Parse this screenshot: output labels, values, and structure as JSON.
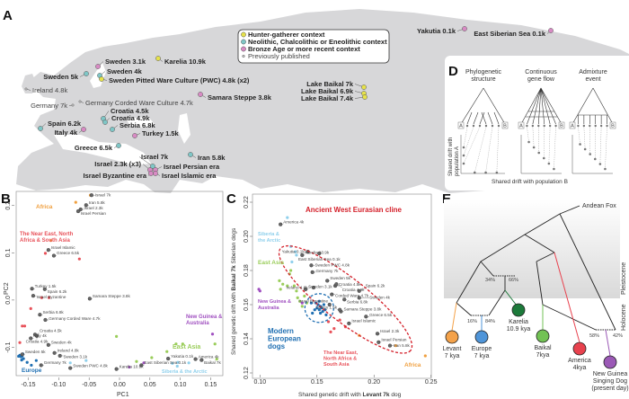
{
  "panels": {
    "a": "A",
    "b": "B",
    "c": "C",
    "d": "D",
    "e": "E"
  },
  "colors": {
    "hunter": "#e6e24a",
    "neolithic": "#7fc6c6",
    "bronze": "#d88bc4",
    "previous": "#cccccc",
    "land": "#d7d7d9",
    "europe": "#1f6fb2",
    "neareast": "#e8525a",
    "eastasia": "#9acd5a",
    "siberia": "#8fd0ec",
    "newguinea": "#a050c0",
    "africa": "#f0a040",
    "cline": "#d4202a"
  },
  "map": {
    "legend": [
      {
        "label": "Hunter-gatherer context",
        "type": "hunter"
      },
      {
        "label": "Neolithic, Chalcolithic or Eneolithic context",
        "type": "neolithic"
      },
      {
        "label": "Bronze Age or more recent context",
        "type": "bronze"
      },
      {
        "label": "Previously published",
        "type": "previous"
      }
    ],
    "sites": [
      {
        "label": "Sweden 3.1k",
        "type": "bronze"
      },
      {
        "label": "Karelia 10.9k",
        "type": "hunter"
      },
      {
        "label": "Sweden 5k",
        "type": "neolithic"
      },
      {
        "label": "Sweden 4k",
        "type": "neolithic"
      },
      {
        "label": "Sweden Pitted Ware Culture (PWC) 4.8k (x2)",
        "type": "hunter"
      },
      {
        "label": "Ireland 4.8k",
        "type": "previous"
      },
      {
        "label": "Germany 7k",
        "type": "previous"
      },
      {
        "label": "Germany Corded Ware Culture 4.7k",
        "type": "previous"
      },
      {
        "label": "Samara Steppe 3.8k",
        "type": "bronze"
      },
      {
        "label": "Croatia 4.5k",
        "type": "neolithic"
      },
      {
        "label": "Croatia 4.9k",
        "type": "neolithic"
      },
      {
        "label": "Serbia 6.8k",
        "type": "neolithic"
      },
      {
        "label": "Spain 6.2k",
        "type": "neolithic"
      },
      {
        "label": "Italy 4k",
        "type": "bronze"
      },
      {
        "label": "Turkey 1.5k",
        "type": "bronze"
      },
      {
        "label": "Greece 6.5k",
        "type": "neolithic"
      },
      {
        "label": "Iran 5.8k",
        "type": "neolithic"
      },
      {
        "label": "Israel 7k",
        "type": "neolithic"
      },
      {
        "label": "Israel 2.3k (x3)",
        "type": "bronze"
      },
      {
        "label": "Israel Persian era",
        "type": "bronze"
      },
      {
        "label": "Israel Byzantine era",
        "type": "bronze"
      },
      {
        "label": "Israel Islamic era",
        "type": "bronze"
      },
      {
        "label": "Lake Baikal 7k",
        "type": "hunter"
      },
      {
        "label": "Lake Baikal 6.9k",
        "type": "hunter"
      },
      {
        "label": "Lake Baikal 7.4k",
        "type": "hunter"
      },
      {
        "label": "Yakutia 0.1k",
        "type": "bronze"
      },
      {
        "label": "East Siberian Sea 0.1k",
        "type": "bronze"
      }
    ]
  },
  "chart_data": [
    {
      "type": "scatter",
      "panel": "B",
      "xlabel": "PC1",
      "ylabel": "PC2",
      "xlim": [
        -0.17,
        0.17
      ],
      "ylim": [
        -0.16,
        0.23
      ],
      "xticks": [
        "-0.15",
        "-0.10",
        "-0.05",
        "0.00",
        "0.05",
        "0.10",
        "0.15"
      ],
      "xtick_values": [
        -0.15,
        -0.1,
        -0.05,
        0,
        0.05,
        0.1,
        0.15
      ],
      "yticks": [
        "-0.1",
        "0.0",
        "0.1",
        "0.2"
      ],
      "ytick_values": [
        -0.1,
        0,
        0.1,
        0.2
      ],
      "ancient": [
        {
          "label": "Israel 7k",
          "x": -0.046,
          "y": 0.222
        },
        {
          "label": "Iran 5.8k",
          "x": -0.055,
          "y": 0.201
        },
        {
          "label": "Israel 2.3k",
          "x": -0.064,
          "y": 0.192
        },
        {
          "label": "Israel Persian",
          "x": -0.068,
          "y": 0.188
        },
        {
          "label": "Israel Islamic",
          "x": -0.117,
          "y": 0.106
        },
        {
          "label": "Greece 6.5k",
          "x": -0.108,
          "y": 0.094
        },
        {
          "label": "Turkey 1.5k",
          "x": -0.144,
          "y": 0.024
        },
        {
          "label": "Spain 6.2k",
          "x": -0.123,
          "y": 0.023
        },
        {
          "label": "Israel Byzantine",
          "x": -0.142,
          "y": 0.009
        },
        {
          "label": "Samara Steppe 3.8k",
          "x": -0.049,
          "y": 0.003
        },
        {
          "label": "Serbia 6.8k",
          "x": -0.131,
          "y": -0.031
        },
        {
          "label": "Germany Corded Ware 4.7k",
          "x": -0.122,
          "y": -0.042
        },
        {
          "label": "Italy 4k",
          "x": -0.146,
          "y": -0.081
        },
        {
          "label": "Croatia 4.5k",
          "x": -0.139,
          "y": -0.073
        },
        {
          "label": "Croatia 4.9k",
          "x": -0.136,
          "y": -0.076
        },
        {
          "label": "Sweden 5k",
          "x": -0.16,
          "y": -0.115
        },
        {
          "label": "Sweden 4k",
          "x": -0.117,
          "y": -0.095
        },
        {
          "label": "Ireland 4.8k",
          "x": -0.107,
          "y": -0.112
        },
        {
          "label": "Sweden 3.1k",
          "x": -0.098,
          "y": -0.118
        },
        {
          "label": "Germany 7k",
          "x": -0.129,
          "y": -0.138
        },
        {
          "label": "Sweden PWC 4.8k",
          "x": -0.081,
          "y": -0.144
        },
        {
          "label": "Karelia 10.9k",
          "x": -0.005,
          "y": -0.146
        },
        {
          "label": "East Siberian Sea 0.1k",
          "x": 0.036,
          "y": -0.138
        },
        {
          "label": "Yakutia 0.1k",
          "x": 0.08,
          "y": -0.124
        },
        {
          "label": "America 4k",
          "x": 0.125,
          "y": -0.125
        },
        {
          "label": "Baikal 7k",
          "x": 0.135,
          "y": -0.127
        }
      ],
      "groups": [
        {
          "label": "Africa",
          "color": "africa",
          "points": [
            [
              -0.072,
              0.207
            ],
            [
              -0.048,
              0.222
            ],
            [
              -0.113,
              0.126
            ]
          ]
        },
        {
          "label": "The Near East, North Africa & South Asia",
          "color": "neareast",
          "points": [
            [
              -0.122,
              0.099
            ],
            [
              -0.066,
              0.087
            ],
            [
              -0.128,
              0.005
            ],
            [
              -0.116,
              0.005
            ],
            [
              -0.146,
              -0.018
            ],
            [
              -0.16,
              -0.055
            ],
            [
              -0.156,
              -0.055
            ],
            [
              -0.164,
              -0.09
            ]
          ]
        },
        {
          "label": "Europe",
          "color": "europe",
          "points": [
            [
              -0.164,
              -0.117
            ],
            [
              -0.162,
              -0.12
            ],
            [
              -0.16,
              -0.118
            ],
            [
              -0.158,
              -0.124
            ],
            [
              -0.166,
              -0.119
            ],
            [
              -0.161,
              -0.127
            ],
            [
              -0.152,
              -0.132
            ],
            [
              -0.145,
              -0.138
            ],
            [
              -0.137,
              -0.128
            ],
            [
              -0.159,
              -0.114
            ]
          ]
        },
        {
          "label": "Siberia & the Arctic",
          "color": "siberia",
          "points": [
            [
              -0.081,
              -0.133
            ],
            [
              -0.055,
              -0.128
            ],
            [
              0.087,
              -0.134
            ],
            [
              0.096,
              -0.132
            ],
            [
              0.095,
              -0.14
            ],
            [
              0.114,
              -0.133
            ]
          ]
        },
        {
          "label": "East Asia",
          "color": "eastasia",
          "points": [
            [
              -0.005,
              -0.077
            ],
            [
              0.028,
              -0.13
            ],
            [
              0.053,
              -0.122
            ],
            [
              0.078,
              -0.109
            ],
            [
              0.093,
              -0.093
            ],
            [
              0.104,
              -0.093
            ],
            [
              0.157,
              -0.093
            ],
            [
              0.16,
              -0.125
            ]
          ]
        },
        {
          "label": "New Guinea & Australia",
          "color": "newguinea",
          "points": [
            [
              0.016,
              -0.142
            ],
            [
              0.04,
              -0.133
            ],
            [
              0.153,
              -0.072
            ]
          ]
        }
      ]
    },
    {
      "type": "scatter",
      "panel": "C",
      "xlabel_prefix": "Shared genetic drift with ",
      "xlabel_bold": "Levant 7k",
      "xlabel_suffix": " dog",
      "ylabel_prefix": "Shared genetic drift with ",
      "ylabel_bold": "Baikal 7k",
      "ylabel_suffix": " Siberian dogs",
      "xlim": [
        0.095,
        0.255
      ],
      "ylim": [
        0.12,
        0.22
      ],
      "xticks": [
        "0.10",
        "0.15",
        "0.20",
        "0.25"
      ],
      "xtick_values": [
        0.1,
        0.15,
        0.2,
        0.25
      ],
      "yticks": [
        "0.12",
        "0.14",
        "0.16",
        "0.18",
        "0.20",
        "0.22"
      ],
      "ytick_values": [
        0.12,
        0.14,
        0.16,
        0.18,
        0.2,
        0.22
      ],
      "annotations": {
        "cline": "Ancient West Eurasian cline",
        "modern": "Modern European dogs"
      },
      "ancient": [
        {
          "label": "America 4k",
          "x": 0.118,
          "y": 0.207
        },
        {
          "label": "Karelia 10.9k",
          "x": 0.137,
          "y": 0.189
        },
        {
          "label": "Yakutia 0.1k",
          "x": 0.142,
          "y": 0.191
        },
        {
          "label": "East Siberian Sea 0.1k",
          "x": 0.152,
          "y": 0.19
        },
        {
          "label": "Sweden PWC 4.8k",
          "x": 0.145,
          "y": 0.183
        },
        {
          "label": "Germany 7k",
          "x": 0.146,
          "y": 0.179
        },
        {
          "label": "Sweden 3.1k",
          "x": 0.14,
          "y": 0.169
        },
        {
          "label": "Ireland 4.8k",
          "x": 0.147,
          "y": 0.17
        },
        {
          "label": "Sweden 5k",
          "x": 0.159,
          "y": 0.174
        },
        {
          "label": "Croatia 4.5k",
          "x": 0.166,
          "y": 0.171
        },
        {
          "label": "Croatia 4.9k",
          "x": 0.167,
          "y": 0.172
        },
        {
          "label": "Corded Ware 4.7k",
          "x": 0.163,
          "y": 0.166
        },
        {
          "label": "Serbia 6.8k",
          "x": 0.174,
          "y": 0.163
        },
        {
          "label": "Samara Steppe 3.8k",
          "x": 0.171,
          "y": 0.156
        },
        {
          "label": "Spain 6.2k",
          "x": 0.187,
          "y": 0.168
        },
        {
          "label": "Sweden 4k",
          "x": 0.187,
          "y": 0.164
        },
        {
          "label": "Israel Byzantine",
          "x": 0.161,
          "y": 0.16
        },
        {
          "label": "Turkey 1.5k",
          "x": 0.17,
          "y": 0.157
        },
        {
          "label": "Greece 6.5k",
          "x": 0.193,
          "y": 0.153
        },
        {
          "label": "Israel Islamic",
          "x": 0.178,
          "y": 0.149
        },
        {
          "label": "Israel 2.3k",
          "x": 0.203,
          "y": 0.143
        },
        {
          "label": "Israel Persian",
          "x": 0.204,
          "y": 0.138
        },
        {
          "label": "Iran 5.8k",
          "x": 0.214,
          "y": 0.136
        }
      ],
      "groups": [
        {
          "label": "Siberia & the Arctic",
          "color": "siberia",
          "points": [
            [
              0.124,
              0.211
            ],
            [
              0.127,
              0.194
            ],
            [
              0.131,
              0.191
            ],
            [
              0.132,
              0.189
            ],
            [
              0.128,
              0.185
            ]
          ]
        },
        {
          "label": "East Asia",
          "color": "eastasia",
          "points": [
            [
              0.117,
              0.174
            ],
            [
              0.12,
              0.172
            ],
            [
              0.124,
              0.171
            ],
            [
              0.126,
              0.178
            ],
            [
              0.127,
              0.18
            ],
            [
              0.13,
              0.171
            ],
            [
              0.132,
              0.168
            ],
            [
              0.133,
              0.164
            ],
            [
              0.135,
              0.162
            ],
            [
              0.137,
              0.159
            ],
            [
              0.139,
              0.165
            ],
            [
              0.141,
              0.161
            ],
            [
              0.118,
              0.169
            ]
          ]
        },
        {
          "label": "New Guinea & Australia",
          "color": "newguinea",
          "points": [
            [
              0.099,
              0.169
            ],
            [
              0.1,
              0.168
            ],
            [
              0.137,
              0.161
            ]
          ]
        },
        {
          "label": "Modern European dogs",
          "color": "europe",
          "points": [
            [
              0.15,
              0.158
            ],
            [
              0.152,
              0.157
            ],
            [
              0.153,
              0.159
            ],
            [
              0.154,
              0.158
            ],
            [
              0.151,
              0.16
            ],
            [
              0.155,
              0.156
            ],
            [
              0.148,
              0.157
            ],
            [
              0.153,
              0.155
            ],
            [
              0.156,
              0.16
            ],
            [
              0.149,
              0.161
            ],
            [
              0.152,
              0.162
            ],
            [
              0.157,
              0.157
            ],
            [
              0.146,
              0.155
            ],
            [
              0.158,
              0.154
            ],
            [
              0.145,
              0.161
            ]
          ]
        },
        {
          "label": "The Near East, North Africa & South Asia",
          "color": "neareast",
          "points": [
            [
              0.16,
              0.15
            ],
            [
              0.165,
              0.146
            ],
            [
              0.17,
              0.151
            ],
            [
              0.175,
              0.147
            ],
            [
              0.162,
              0.144
            ]
          ]
        },
        {
          "label": "Africa",
          "color": "africa",
          "points": [
            [
              0.187,
              0.142
            ],
            [
              0.219,
              0.136
            ],
            [
              0.245,
              0.13
            ]
          ]
        }
      ]
    }
  ],
  "model_d": {
    "titles": [
      [
        "Phylogenetic",
        "structure"
      ],
      [
        "Continuous",
        "gene flow"
      ],
      [
        "Admixture",
        "event"
      ]
    ],
    "leaf_a": "A",
    "leaf_b": "B",
    "ylabel": [
      "Shared drift with",
      "population A"
    ],
    "xlabel": "Shared drift with  population B"
  },
  "tree_e": {
    "outgroup": "Andean Fox",
    "epochs": {
      "upper": "Pleistocene",
      "lower": "Holocene"
    },
    "admix": [
      "34%",
      "66%",
      "16%",
      "84%",
      "58%",
      "42%"
    ],
    "tips": [
      {
        "name": "Levant",
        "age": "7 kya",
        "color": "#f4a24a"
      },
      {
        "name": "Europe",
        "age": "7 kya",
        "color": "#4f95d9"
      },
      {
        "name": "Karelia",
        "age": "10.9 kya",
        "color": "#1c7a3a"
      },
      {
        "name": "Baikal",
        "age": "7kya",
        "color": "#72c254"
      },
      {
        "name": "America",
        "age": "4kya",
        "color": "#e8424e"
      },
      {
        "name": "New Guinea",
        "name2": "Singing Dog",
        "age": "(present day)",
        "color": "#9b59b6"
      }
    ]
  }
}
